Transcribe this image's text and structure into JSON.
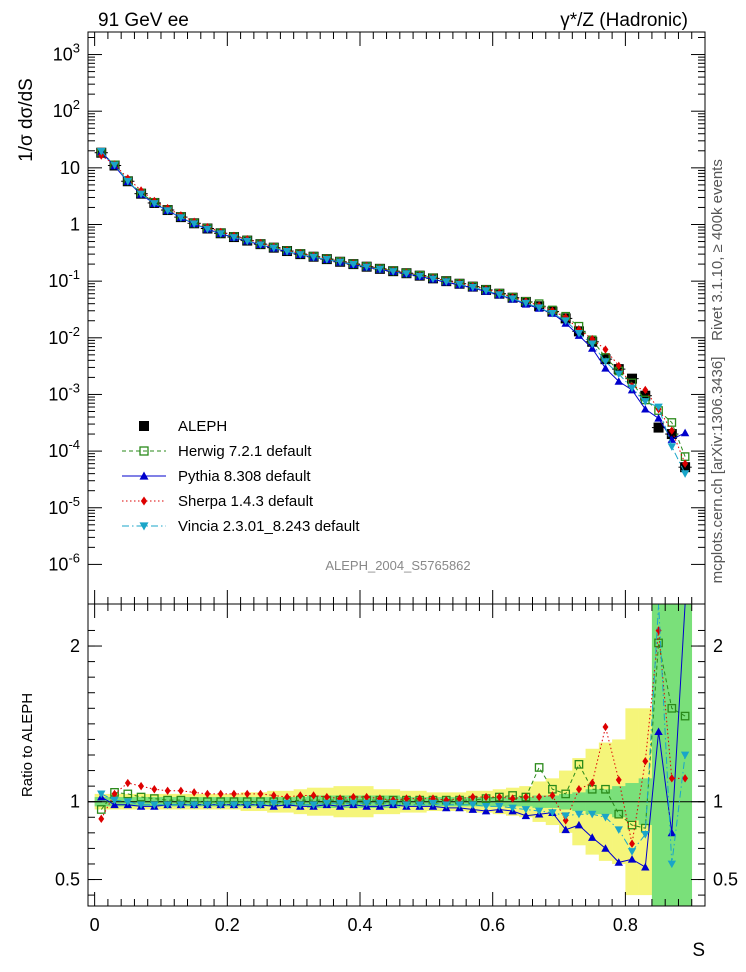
{
  "header": {
    "left_title": "91 GeV ee",
    "right_title": "γ*/Z (Hadronic)",
    "side_label_top": "Rivet 3.1.10, ≥ 400k events",
    "side_label_bottom": "mcplots.cern.ch [arXiv:1306.3436]",
    "watermark": "ALEPH_2004_S5765862"
  },
  "chart_data": [
    {
      "type": "scatter",
      "title": "",
      "xlabel": "S",
      "ylabel": "1/σ  dσ/dS",
      "yscale": "log",
      "xlim": [
        -0.01,
        0.92
      ],
      "ylim": [
        2e-07,
        2500
      ],
      "ytick_labels": [
        "10^3",
        "10^2",
        "10",
        "1",
        "10^-1",
        "10^-2",
        "10^-3",
        "10^-4",
        "10^-5",
        "10^-6"
      ],
      "x": [
        0.01,
        0.03,
        0.05,
        0.07,
        0.09,
        0.11,
        0.13,
        0.15,
        0.17,
        0.19,
        0.21,
        0.23,
        0.25,
        0.27,
        0.29,
        0.31,
        0.33,
        0.35,
        0.37,
        0.39,
        0.41,
        0.43,
        0.45,
        0.47,
        0.49,
        0.51,
        0.53,
        0.55,
        0.57,
        0.59,
        0.61,
        0.63,
        0.65,
        0.67,
        0.69,
        0.71,
        0.73,
        0.75,
        0.77,
        0.79,
        0.81,
        0.83,
        0.85,
        0.87,
        0.89
      ],
      "series": [
        {
          "name": "ALEPH",
          "color": "#000000",
          "marker": "square-filled",
          "values": [
            18.5,
            11.0,
            5.8,
            3.5,
            2.4,
            1.8,
            1.35,
            1.05,
            0.85,
            0.7,
            0.6,
            0.52,
            0.45,
            0.39,
            0.34,
            0.3,
            0.27,
            0.245,
            0.22,
            0.2,
            0.18,
            0.165,
            0.15,
            0.138,
            0.125,
            0.112,
            0.1,
            0.09,
            0.08,
            0.07,
            0.06,
            0.051,
            0.043,
            0.036,
            0.029,
            0.022,
            0.013,
            0.0085,
            0.0042,
            0.0028,
            0.0019,
            0.00095,
            0.00026,
            0.0002,
            5.2e-05
          ]
        },
        {
          "name": "Herwig 7.2.1 default",
          "color": "#2a8a1a",
          "marker": "square-open",
          "values": [
            18.8,
            11.3,
            5.9,
            3.6,
            2.45,
            1.82,
            1.37,
            1.06,
            0.86,
            0.71,
            0.61,
            0.53,
            0.455,
            0.395,
            0.345,
            0.305,
            0.273,
            0.248,
            0.223,
            0.202,
            0.182,
            0.167,
            0.152,
            0.139,
            0.127,
            0.114,
            0.101,
            0.091,
            0.081,
            0.071,
            0.061,
            0.052,
            0.044,
            0.04,
            0.031,
            0.024,
            0.016,
            0.0092,
            0.0045,
            0.0026,
            0.0016,
            0.0008,
            0.00052,
            0.00032,
            8e-05
          ]
        },
        {
          "name": "Pythia 8.308 default",
          "color": "#0000cc",
          "marker": "triangle-up",
          "values": [
            19.0,
            10.8,
            5.7,
            3.4,
            2.33,
            1.76,
            1.32,
            1.03,
            0.83,
            0.69,
            0.59,
            0.51,
            0.44,
            0.38,
            0.333,
            0.293,
            0.263,
            0.24,
            0.215,
            0.196,
            0.176,
            0.161,
            0.147,
            0.134,
            0.121,
            0.108,
            0.096,
            0.086,
            0.076,
            0.066,
            0.057,
            0.048,
            0.039,
            0.033,
            0.027,
            0.018,
            0.011,
            0.0065,
            0.0029,
            0.0017,
            0.0012,
            0.00055,
            0.00038,
            0.00016,
            0.00021
          ]
        },
        {
          "name": "Sherpa 1.4.3 default",
          "color": "#dd0000",
          "marker": "diamond",
          "values": [
            16.5,
            11.5,
            6.5,
            4.0,
            2.6,
            1.95,
            1.45,
            1.12,
            0.9,
            0.74,
            0.63,
            0.55,
            0.47,
            0.405,
            0.35,
            0.31,
            0.28,
            0.25,
            0.225,
            0.205,
            0.185,
            0.168,
            0.152,
            0.14,
            0.127,
            0.114,
            0.101,
            0.092,
            0.082,
            0.072,
            0.062,
            0.052,
            0.044,
            0.037,
            0.03,
            0.023,
            0.014,
            0.0095,
            0.0062,
            0.0032,
            0.0014,
            0.0012,
            0.00055,
            0.00023,
            6e-05
          ]
        },
        {
          "name": "Vincia 2.3.01_8.243 default",
          "color": "#1aa5c8",
          "marker": "triangle-down",
          "values": [
            19.5,
            11.2,
            5.8,
            3.45,
            2.35,
            1.76,
            1.32,
            1.03,
            0.83,
            0.69,
            0.59,
            0.51,
            0.44,
            0.385,
            0.335,
            0.295,
            0.265,
            0.242,
            0.218,
            0.198,
            0.178,
            0.163,
            0.148,
            0.136,
            0.123,
            0.11,
            0.098,
            0.088,
            0.078,
            0.068,
            0.058,
            0.049,
            0.041,
            0.034,
            0.027,
            0.02,
            0.012,
            0.0078,
            0.0038,
            0.0023,
            0.0013,
            0.00075,
            0.0006,
            0.00012,
            4e-05
          ]
        }
      ]
    },
    {
      "type": "scatter",
      "title": "",
      "xlabel": "S",
      "ylabel": "Ratio to ALEPH",
      "xlim": [
        -0.01,
        0.92
      ],
      "ylim": [
        0.33,
        2.27
      ],
      "ytick_labels": [
        "0.5",
        "1",
        "2"
      ],
      "xtick_labels": [
        "0",
        "0.2",
        "0.4",
        "0.6",
        "0.8"
      ],
      "x": [
        0.01,
        0.03,
        0.05,
        0.07,
        0.09,
        0.11,
        0.13,
        0.15,
        0.17,
        0.19,
        0.21,
        0.23,
        0.25,
        0.27,
        0.29,
        0.31,
        0.33,
        0.35,
        0.37,
        0.39,
        0.41,
        0.43,
        0.45,
        0.47,
        0.49,
        0.51,
        0.53,
        0.55,
        0.57,
        0.59,
        0.61,
        0.63,
        0.65,
        0.67,
        0.69,
        0.71,
        0.73,
        0.75,
        0.77,
        0.79,
        0.81,
        0.83,
        0.85,
        0.87,
        0.89
      ],
      "band_stat": [
        0.03,
        0.03,
        0.03,
        0.03,
        0.03,
        0.03,
        0.03,
        0.03,
        0.03,
        0.03,
        0.03,
        0.03,
        0.03,
        0.03,
        0.03,
        0.03,
        0.04,
        0.04,
        0.04,
        0.04,
        0.04,
        0.04,
        0.04,
        0.03,
        0.03,
        0.03,
        0.03,
        0.03,
        0.03,
        0.03,
        0.03,
        0.03,
        0.03,
        0.04,
        0.04,
        0.05,
        0.06,
        0.08,
        0.08,
        0.1,
        0.12,
        0.15,
        2.0,
        2.0,
        2.0
      ],
      "band_total": [
        0.05,
        0.05,
        0.05,
        0.05,
        0.05,
        0.05,
        0.05,
        0.05,
        0.05,
        0.05,
        0.05,
        0.06,
        0.06,
        0.07,
        0.07,
        0.08,
        0.09,
        0.09,
        0.1,
        0.1,
        0.1,
        0.08,
        0.08,
        0.07,
        0.07,
        0.06,
        0.06,
        0.06,
        0.07,
        0.07,
        0.08,
        0.09,
        0.1,
        0.13,
        0.15,
        0.2,
        0.28,
        0.34,
        0.38,
        0.4,
        0.6,
        0.6,
        2.0,
        2.0,
        2.0
      ],
      "series": [
        {
          "name": "Herwig 7.2.1 default",
          "color": "#2a8a1a",
          "marker": "square-open",
          "values": [
            0.95,
            1.06,
            1.05,
            1.03,
            1.02,
            1.01,
            1.01,
            1.0,
            1.0,
            1.0,
            1.0,
            1.0,
            1.0,
            1.0,
            1.0,
            1.01,
            1.01,
            1.01,
            1.01,
            1.01,
            1.01,
            1.01,
            1.01,
            1.01,
            1.01,
            1.01,
            1.01,
            1.01,
            1.01,
            1.02,
            1.03,
            1.04,
            1.03,
            1.22,
            1.08,
            1.05,
            1.24,
            1.08,
            1.08,
            0.92,
            0.85,
            0.83,
            2.02,
            1.6,
            1.55
          ]
        },
        {
          "name": "Pythia 8.308 default",
          "color": "#0000cc",
          "marker": "triangle-up",
          "values": [
            1.03,
            0.98,
            0.98,
            0.97,
            0.97,
            0.98,
            0.98,
            0.98,
            0.98,
            0.98,
            0.98,
            0.98,
            0.98,
            0.97,
            0.98,
            0.97,
            0.97,
            0.98,
            0.97,
            0.98,
            0.97,
            0.97,
            0.98,
            0.97,
            0.97,
            0.97,
            0.96,
            0.96,
            0.95,
            0.94,
            0.95,
            0.94,
            0.91,
            0.92,
            0.93,
            0.82,
            0.85,
            0.77,
            0.7,
            0.61,
            0.63,
            0.58,
            1.45,
            0.8,
            2.3
          ]
        },
        {
          "name": "Sherpa 1.4.3 default",
          "color": "#dd0000",
          "marker": "diamond",
          "values": [
            0.89,
            1.05,
            1.12,
            1.1,
            1.08,
            1.07,
            1.07,
            1.06,
            1.05,
            1.05,
            1.05,
            1.05,
            1.05,
            1.04,
            1.03,
            1.04,
            1.04,
            1.03,
            1.02,
            1.03,
            1.03,
            1.02,
            1.01,
            1.02,
            1.02,
            1.02,
            1.01,
            1.02,
            1.03,
            1.03,
            1.03,
            1.02,
            1.03,
            1.03,
            1.04,
            0.88,
            1.08,
            1.12,
            1.48,
            1.14,
            0.73,
            1.26,
            2.1,
            1.15,
            1.15
          ]
        },
        {
          "name": "Vincia 2.3.01_8.243 default",
          "color": "#1aa5c8",
          "marker": "triangle-down",
          "values": [
            1.05,
            1.01,
            1.0,
            0.98,
            0.98,
            0.98,
            0.98,
            0.98,
            0.98,
            0.98,
            0.98,
            0.98,
            0.98,
            0.99,
            0.99,
            0.98,
            0.98,
            0.99,
            0.99,
            0.99,
            0.99,
            0.99,
            0.99,
            0.98,
            0.98,
            0.99,
            0.98,
            0.98,
            0.98,
            0.97,
            0.97,
            0.96,
            0.95,
            0.94,
            0.93,
            0.91,
            0.92,
            0.92,
            0.9,
            0.82,
            0.68,
            0.79,
            2.3,
            0.6,
            1.3
          ]
        }
      ]
    }
  ]
}
